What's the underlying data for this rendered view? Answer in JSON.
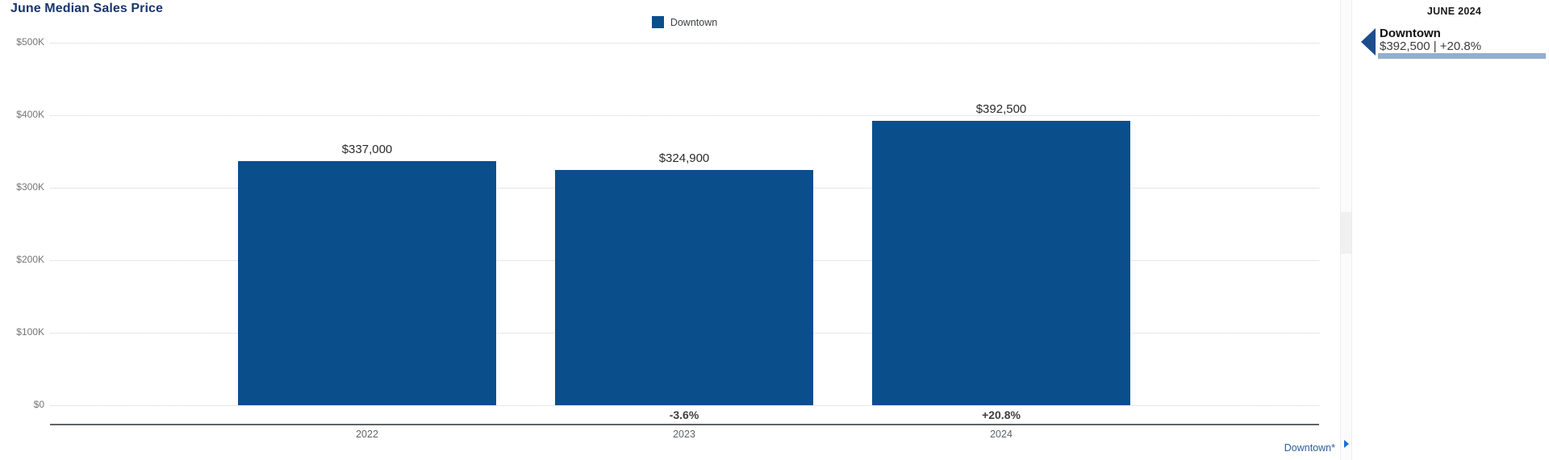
{
  "chart_data": {
    "type": "bar",
    "title": "June Median Sales Price",
    "categories": [
      "2022",
      "2023",
      "2024"
    ],
    "series": [
      {
        "name": "Downtown",
        "values": [
          337000,
          324900,
          392500
        ]
      }
    ],
    "value_labels": [
      "$337,000",
      "$324,900",
      "$392,500"
    ],
    "pct_change_labels": [
      "",
      "-3.6%",
      "+20.8%"
    ],
    "y_ticks": [
      "$500K",
      "$400K",
      "$300K",
      "$200K",
      "$100K",
      "$0"
    ],
    "ylim": [
      0,
      500000
    ],
    "grid": true,
    "legend_position": "top-center",
    "bar_color": "#0b4e8c"
  },
  "header": {
    "title": "June Median Sales Price"
  },
  "legend": {
    "label": "Downtown"
  },
  "footer": {
    "link_label": "Downtown*"
  },
  "sidebar": {
    "month_header": "JUNE 2024",
    "item": {
      "name": "Downtown",
      "value_text": "$392,500 | +20.8%"
    }
  },
  "colors": {
    "bar": "#0b4e8c",
    "title_navy": "#17366d",
    "sidebar_mini_bar": "#92afce",
    "link_blue": "#2e5d9f",
    "expand_arrow_blue": "#1a6fd4"
  }
}
